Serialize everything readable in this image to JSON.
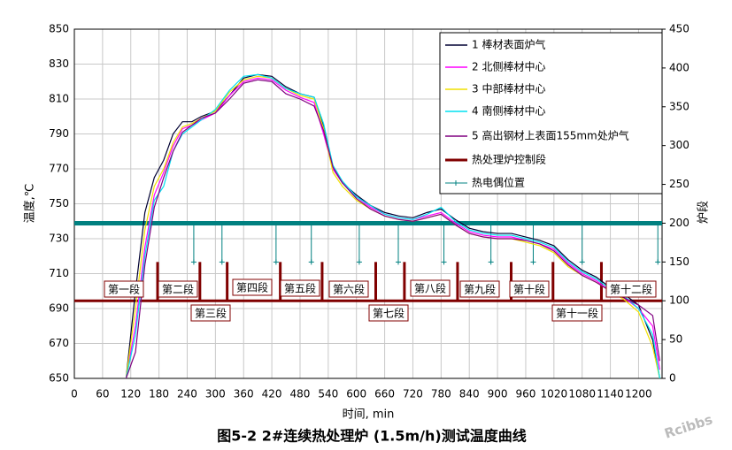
{
  "chart_data": {
    "type": "line",
    "title": "图5-2 2#连续热处理炉 (1.5m/h)测试温度曲线",
    "xlabel": "时间, min",
    "ylabel": "温度,℃",
    "y2label": "炉段",
    "watermark": "Rcibbs",
    "xlim": [
      0,
      1250
    ],
    "xticks": [
      0,
      60,
      120,
      180,
      240,
      300,
      360,
      420,
      480,
      540,
      600,
      660,
      720,
      780,
      840,
      900,
      960,
      1020,
      1080,
      1140,
      1200
    ],
    "ylim": [
      650,
      850
    ],
    "yticks": [
      650,
      670,
      690,
      710,
      730,
      750,
      770,
      790,
      810,
      830,
      850
    ],
    "y2lim": [
      0,
      450
    ],
    "y2ticks": [
      0,
      50,
      100,
      150,
      200,
      250,
      300,
      350,
      400,
      450
    ],
    "grid": true,
    "legend": "upper right",
    "x": [
      110,
      130,
      150,
      170,
      190,
      210,
      230,
      250,
      270,
      300,
      330,
      360,
      390,
      420,
      450,
      480,
      510,
      530,
      550,
      570,
      600,
      630,
      660,
      690,
      720,
      750,
      780,
      810,
      840,
      870,
      900,
      930,
      960,
      990,
      1020,
      1050,
      1080,
      1110,
      1140,
      1170,
      1200,
      1230,
      1245
    ],
    "series": [
      {
        "name": "1 棒材表面炉气",
        "color": "#000033",
        "values": [
          650,
          700,
          745,
          765,
          775,
          790,
          797,
          797,
          800,
          803,
          812,
          822,
          824,
          823,
          817,
          813,
          811,
          795,
          770,
          762,
          755,
          749,
          745,
          743,
          742,
          745,
          747,
          741,
          736,
          734,
          733,
          733,
          731,
          729,
          726,
          718,
          712,
          708,
          702,
          698,
          692,
          672,
          650
        ]
      },
      {
        "name": "2 北侧棒材中心",
        "color": "#ff00ff",
        "values": [
          650,
          680,
          725,
          755,
          768,
          783,
          793,
          795,
          798,
          802,
          812,
          820,
          822,
          821,
          815,
          811,
          808,
          790,
          770,
          762,
          754,
          748,
          744,
          742,
          741,
          743,
          745,
          739,
          734,
          732,
          731,
          731,
          729,
          727,
          724,
          716,
          710,
          706,
          700,
          696,
          690,
          680,
          655
        ]
      },
      {
        "name": "3 中部棒材中心",
        "color": "#f0e000",
        "values": [
          650,
          690,
          735,
          760,
          770,
          785,
          794,
          796,
          799,
          803,
          814,
          821,
          823,
          822,
          816,
          812,
          810,
          793,
          768,
          760,
          752,
          747,
          743,
          741,
          740,
          742,
          744,
          738,
          733,
          731,
          730,
          730,
          728,
          726,
          722,
          714,
          709,
          705,
          700,
          695,
          688,
          668,
          650
        ]
      },
      {
        "name": "4 南侧棒材中心",
        "color": "#00e0f0",
        "values": [
          650,
          675,
          720,
          752,
          760,
          780,
          790,
          794,
          798,
          804,
          815,
          823,
          824,
          822,
          816,
          813,
          811,
          796,
          772,
          763,
          754,
          749,
          744,
          742,
          741,
          744,
          748,
          740,
          735,
          733,
          732,
          732,
          730,
          728,
          725,
          717,
          711,
          707,
          701,
          697,
          690,
          675,
          650
        ]
      },
      {
        "name": "5 高出钢材上表面155mm处炉气",
        "color": "#800080",
        "values": [
          650,
          665,
          715,
          748,
          765,
          780,
          791,
          795,
          799,
          802,
          810,
          819,
          821,
          820,
          813,
          810,
          806,
          792,
          771,
          762,
          753,
          747,
          743,
          741,
          740,
          742,
          744,
          738,
          733,
          731,
          730,
          730,
          729,
          727,
          723,
          715,
          709,
          705,
          700,
          696,
          692,
          686,
          660
        ]
      }
    ],
    "control": {
      "name": "热处理炉控制段",
      "color": "#800000",
      "axis": "y2",
      "level": 100,
      "tick_top": 150,
      "boundaries": [
        177,
        267,
        325,
        438,
        527,
        641,
        702,
        815,
        929,
        1018,
        1121
      ]
    },
    "thermocouples": {
      "name": "热电偶位置",
      "color": "#008080",
      "axis": "y2",
      "level": 200,
      "drop": 150,
      "positions": [
        254,
        314,
        429,
        504,
        606,
        689,
        786,
        886,
        976,
        1080,
        1241
      ]
    },
    "segment_labels": [
      "第一段",
      "第二段",
      "第三段",
      "第四段",
      "第五段",
      "第六段",
      "第七段",
      "第八段",
      "第九段",
      "第十段",
      "第十一段",
      "第十二段"
    ]
  }
}
